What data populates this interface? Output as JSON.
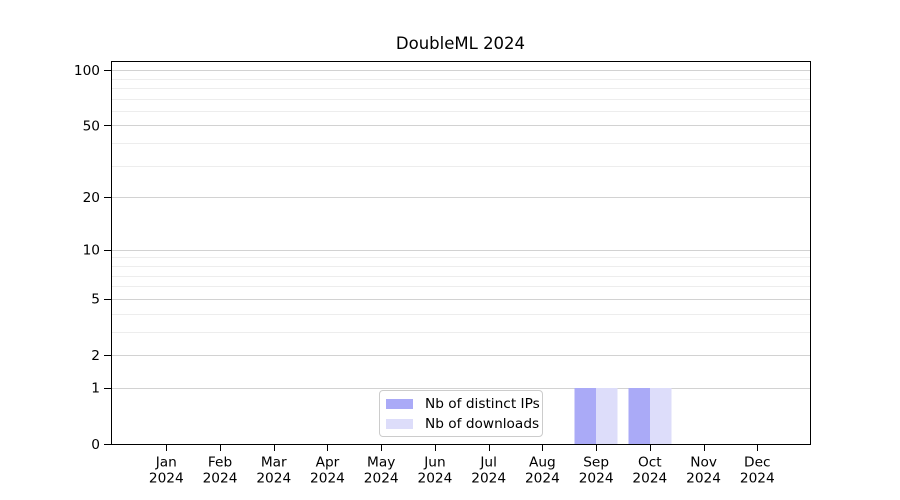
{
  "chart_data": {
    "type": "bar",
    "title": "DoubleML 2024",
    "categories": [
      "Jan",
      "Feb",
      "Mar",
      "Apr",
      "May",
      "Jun",
      "Jul",
      "Aug",
      "Sep",
      "Oct",
      "Nov",
      "Dec"
    ],
    "year_label": "2024",
    "series": [
      {
        "name": "Nb of distinct IPs",
        "color": "#aaaaf7",
        "values": [
          0,
          0,
          0,
          0,
          0,
          0,
          0,
          0,
          1,
          1,
          0,
          0
        ]
      },
      {
        "name": "Nb of downloads",
        "color": "#ddddfa",
        "values": [
          0,
          0,
          0,
          0,
          0,
          0,
          0,
          0,
          1,
          1,
          0,
          0
        ]
      }
    ],
    "xlabel": "",
    "ylabel": "",
    "y_scale": "log1p",
    "y_major_ticks": [
      0,
      1,
      2,
      5,
      10,
      20,
      50,
      100
    ],
    "y_minor_gridlines": [
      3,
      4,
      6,
      7,
      8,
      9,
      30,
      40,
      60,
      70,
      80,
      90
    ],
    "ylim": [
      0,
      112
    ],
    "grid": true,
    "legend_position": "lower center",
    "colors": {
      "major_grid": "#d2d2d2",
      "minor_grid": "#ededed",
      "spine": "#000000",
      "tick": "#000000",
      "text": "#000000",
      "legend_border": "#cccccc"
    }
  }
}
